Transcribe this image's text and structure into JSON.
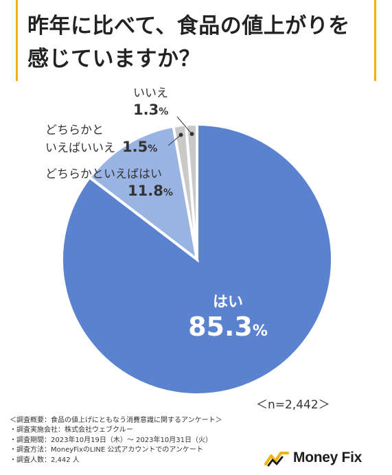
{
  "title": "昨年に比べて、食品の値上がりを感じていますか？",
  "chart_data": {
    "type": "pie",
    "title": "昨年に比べて、食品の値上がりを感じていますか？",
    "slices": [
      {
        "label": "はい",
        "value": 85.3,
        "color": "#5a82cf"
      },
      {
        "label": "どちらかといえばはい",
        "value": 11.8,
        "color": "#99b3e3"
      },
      {
        "label": "どちらかといえばいいえ",
        "value": 1.5,
        "color": "#c9c9c9"
      },
      {
        "label": "いいえ",
        "value": 1.3,
        "color": "#c9c9c9"
      }
    ],
    "unit": "%"
  },
  "labels": {
    "hai": "はい",
    "hai_value": "85.3",
    "dochira_hai": "どちらかといえばはい",
    "dochira_hai_value": "11.8",
    "dochira_iie_line1": "どちらかと",
    "dochira_iie_line2": "いえばいいえ",
    "dochira_iie_value": "1.5",
    "iie": "いいえ",
    "iie_value": "1.3",
    "unit": "%"
  },
  "sample_size": "＜n=2,442＞",
  "notes": [
    "＜調査概要：食品の値上げにともなう消費意識に関するアンケート＞",
    "・調査実施会社：株式会社ウェブクルー",
    "・調査期間：2023年10月19日（木）～ 2023年10月31日（火）",
    "・調査方法：MoneyFixのLINE 公式アカウントでのアンケート",
    "・調査人数：2,442 人"
  ],
  "brand": {
    "name": "Money Fix",
    "accent": "#f0b400"
  }
}
